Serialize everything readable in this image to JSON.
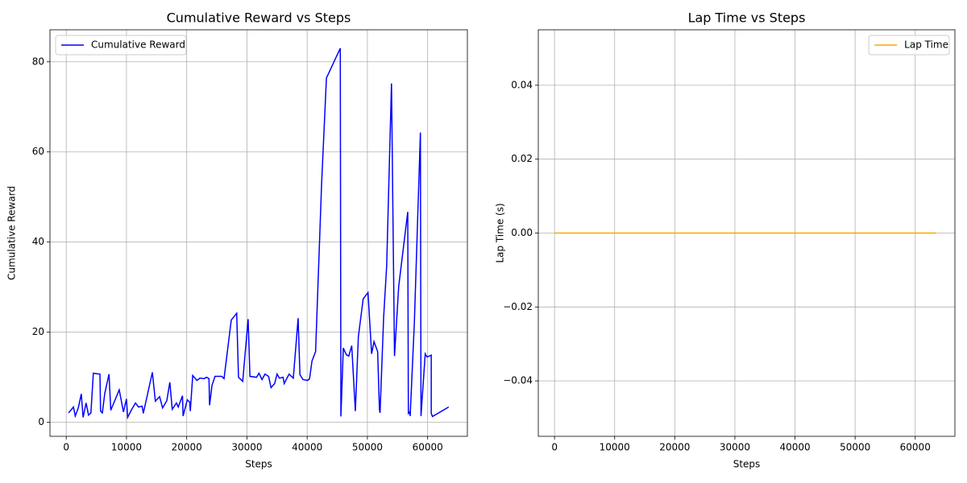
{
  "chart_data": [
    {
      "type": "line",
      "title": "Cumulative Reward vs Steps",
      "x_label": "Steps",
      "y_label": "Cumulative Reward",
      "legend": "upper left",
      "grid": true,
      "xlim": [
        -2700,
        66600
      ],
      "xticks": [
        0,
        10000,
        20000,
        30000,
        40000,
        50000,
        60000
      ],
      "ylim": [
        -3.1,
        87.1
      ],
      "yticks": [
        0,
        20,
        40,
        60,
        80
      ],
      "x": [
        400,
        1200,
        1500,
        2000,
        2500,
        2800,
        3300,
        3700,
        4100,
        4500,
        5600,
        5700,
        6000,
        6400,
        7100,
        7400,
        8800,
        9500,
        10000,
        10200,
        10800,
        11500,
        12000,
        12600,
        12800,
        14300,
        14800,
        15500,
        16000,
        16700,
        17200,
        17600,
        18300,
        18600,
        19300,
        19400,
        20100,
        20500,
        20600,
        21000,
        21700,
        22200,
        22900,
        23300,
        23700,
        23800,
        24200,
        24700,
        25800,
        26200,
        27400,
        28300,
        28600,
        29300,
        30200,
        30500,
        31600,
        32000,
        32500,
        33000,
        33600,
        34000,
        34600,
        35000,
        35400,
        36000,
        36200,
        36600,
        37000,
        37700,
        38500,
        38800,
        39300,
        40100,
        40400,
        40800,
        41400,
        42400,
        43200,
        45500,
        45600,
        46000,
        46500,
        46900,
        47400,
        48000,
        48500,
        49300,
        50100,
        50700,
        51100,
        51700,
        52000,
        52100,
        52700,
        53200,
        54000,
        54500,
        55200,
        56700,
        56800,
        57000,
        57100,
        57800,
        58800,
        58900,
        59600,
        59900,
        60600,
        60600,
        60800,
        63500
      ],
      "series": [
        {
          "name": "Cumulative Reward",
          "color": "#0000ff",
          "values": [
            2.1,
            3.4,
            1.4,
            3.2,
            6.3,
            1.1,
            4.3,
            1.6,
            2.1,
            10.9,
            10.7,
            2.5,
            2.1,
            6.4,
            10.7,
            2.7,
            7.2,
            2.3,
            5.2,
            1.1,
            2.7,
            4.3,
            3.4,
            3.6,
            2.0,
            11.1,
            4.7,
            5.7,
            3.2,
            4.8,
            8.9,
            2.9,
            4.3,
            3.4,
            5.9,
            1.4,
            5.0,
            4.5,
            2.5,
            10.4,
            9.3,
            9.8,
            9.7,
            10.0,
            9.7,
            3.8,
            8.2,
            10.2,
            10.2,
            9.7,
            22.7,
            24.2,
            10.0,
            9.1,
            22.9,
            10.2,
            10.0,
            10.9,
            9.5,
            10.7,
            10.2,
            7.7,
            8.6,
            10.7,
            9.8,
            10.0,
            8.6,
            9.7,
            10.7,
            9.8,
            23.1,
            10.6,
            9.5,
            9.3,
            9.7,
            13.6,
            15.7,
            53.0,
            76.4,
            83.0,
            1.3,
            16.5,
            15.0,
            14.7,
            17.0,
            2.5,
            19.0,
            27.4,
            28.8,
            15.2,
            17.9,
            15.7,
            2.9,
            2.1,
            23.4,
            34.7,
            75.2,
            14.7,
            30.2,
            46.7,
            2.0,
            2.3,
            1.4,
            22.2,
            64.3,
            1.4,
            15.2,
            14.5,
            14.9,
            2.0,
            1.3,
            3.4
          ]
        }
      ]
    },
    {
      "type": "line",
      "title": "Lap Time vs Steps",
      "x_label": "Steps",
      "y_label": "Lap Time (s)",
      "legend": "upper right",
      "grid": true,
      "xlim": [
        -2700,
        66600
      ],
      "xticks": [
        0,
        10000,
        20000,
        30000,
        40000,
        50000,
        60000
      ],
      "ylim": [
        -0.055,
        0.055
      ],
      "yticks": [
        {
          "value": -0.04,
          "label": "−0.04"
        },
        {
          "value": -0.02,
          "label": "−0.02"
        },
        {
          "value": 0,
          "label": "0.00"
        },
        {
          "value": 0.02,
          "label": "0.02"
        },
        {
          "value": 0.04,
          "label": "0.04"
        }
      ],
      "x": [
        0,
        63500
      ],
      "series": [
        {
          "name": "Lap Time",
          "color": "#ffa500",
          "values": [
            0,
            0
          ]
        }
      ]
    }
  ]
}
